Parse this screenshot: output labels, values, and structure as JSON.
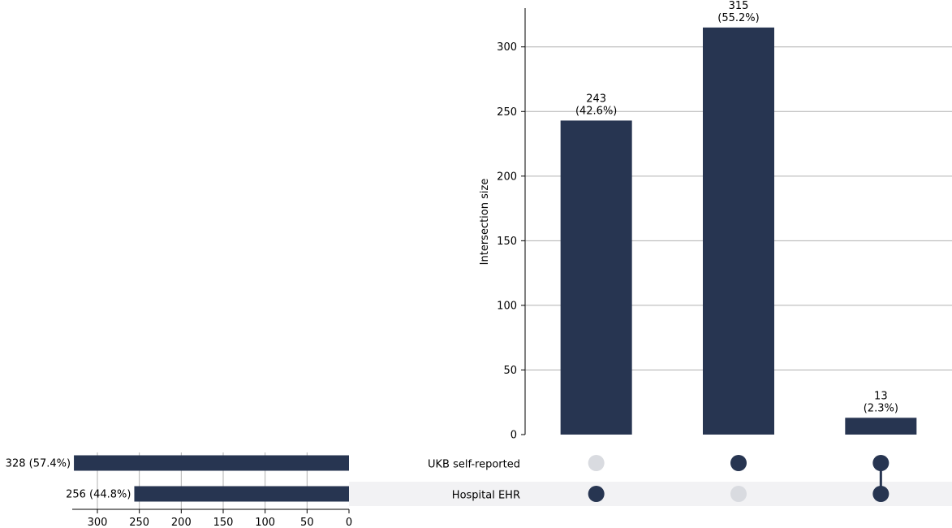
{
  "colors": {
    "bar": "#273551",
    "dot_inactive": "#d9dbe0",
    "row_stripe": "#f2f2f4",
    "grid": "#b0b0b0",
    "axis": "#000000"
  },
  "chart_data": {
    "type": "upset",
    "ylabel": "Intersection size",
    "ylim": [
      0,
      330
    ],
    "yticks": [
      0,
      50,
      100,
      150,
      200,
      250,
      300
    ],
    "sets": [
      {
        "name": "UKB self-reported",
        "size": 328,
        "label": "328 (57.4%)"
      },
      {
        "name": "Hospital EHR",
        "size": 256,
        "label": "256 (44.8%)"
      }
    ],
    "set_size_axis": {
      "xlim": [
        330,
        0
      ],
      "ticks": [
        300,
        250,
        200,
        150,
        100,
        50,
        0
      ]
    },
    "intersections": [
      {
        "members": [
          "Hospital EHR"
        ],
        "value": 243,
        "label": [
          "243",
          "(42.6%)"
        ]
      },
      {
        "members": [
          "UKB self-reported"
        ],
        "value": 315,
        "label": [
          "315",
          "(55.2%)"
        ]
      },
      {
        "members": [
          "UKB self-reported",
          "Hospital EHR"
        ],
        "value": 13,
        "label": [
          "13",
          "(2.3%)"
        ]
      }
    ],
    "grid": true
  }
}
